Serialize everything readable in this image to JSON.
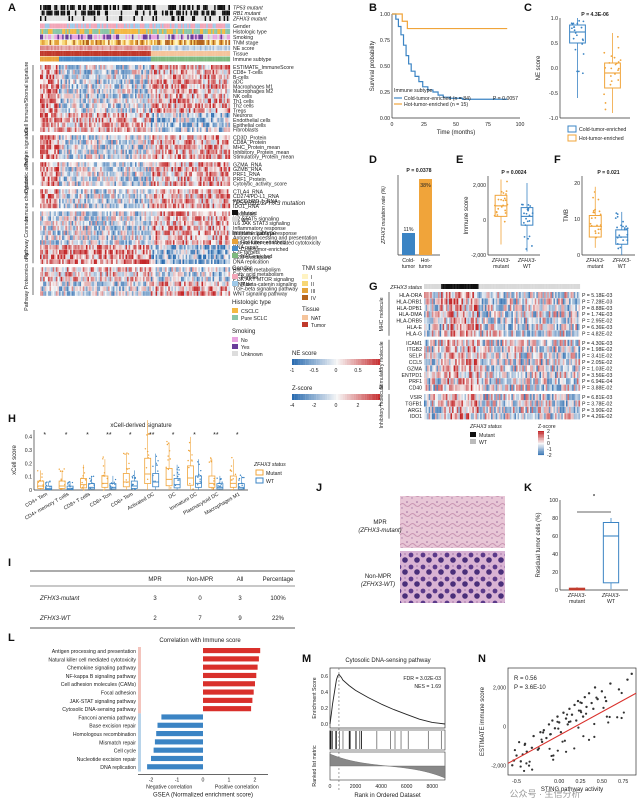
{
  "panel_labels": [
    "A",
    "B",
    "C",
    "D",
    "E",
    "F",
    "G",
    "H",
    "I",
    "J",
    "K",
    "L",
    "M",
    "N"
  ],
  "panelA": {
    "mutation_rows": [
      "TP53 mutant",
      "RB1 mutant",
      "ZFHX3 mutant"
    ],
    "annotation_rows": [
      "Gender",
      "Histologic type",
      "Smoking",
      "TNM stage",
      "NE score",
      "Tissue",
      "Immune subtype"
    ],
    "group_headers": [
      {
        "title": "xCell Immune/Stromal signature",
        "rows": [
          "ESTIMATE_ImmuneScore",
          "CD8+ T-cells",
          "B-cells",
          "aDC",
          "Macrophages M1",
          "Macrophages M2",
          "NK cells",
          "Th1 cells",
          "Th2 cells",
          "Tregs",
          "Neurons",
          "Endothelial cells",
          "Epithelial cells",
          "Fibroblasts"
        ]
      },
      {
        "title": "Protein signature",
        "rows": [
          "CD3D_Protein",
          "CD8A_Protein",
          "MHC_Protein_mean",
          "Inhibitory_Protein_mean",
          "Stimulatory_Protein_mean"
        ]
      },
      {
        "title": "Cytotoxic activity",
        "rows": [
          "GZMA_RNA",
          "GZMB_RNA",
          "PRF1_RNA",
          "PRF1_Protein",
          "Cytolytic_activity_score"
        ]
      },
      {
        "title": "Immune checkpoint",
        "rows": [
          "CTLA4_RNA",
          "CD274/PD-L1_RNA",
          "PDCD1/PD-1_RNA",
          "IDO1_RNA"
        ]
      },
      {
        "title": "Pathway Common",
        "rows": [
          "Apoptosis",
          "IL2 STAT5 signaling",
          "IL6 JAK STAT3 signaling",
          "Inflammatory response",
          "Interferon gamma response",
          "Antigen processing and presentation",
          "Natural killer cell mediated cytotoxicity",
          "DNA repair",
          "E2F targets",
          "G2M checkpoint",
          "DNA replication"
        ]
      },
      {
        "title": "Pathway Proteomics only",
        "rows": [
          "Bile acid metabolism",
          "Fatty acid metabolism",
          "PI3K AKT MTOR signaling",
          "WNT beta-catenin signaling",
          "TGF-beta signaling pathway",
          "WNT signaling pathway"
        ]
      }
    ],
    "legend": {
      "mut_title": "TP53/RB1/ZFHX3 mutation",
      "mut_items": [
        {
          "label": "Mutant",
          "color": "#111111"
        },
        {
          "label": "WT",
          "color": "#d9d9d9"
        }
      ],
      "immune_title": "Immune subtype",
      "immune_items": [
        {
          "label": "Hot-tumor-enriched",
          "color": "#e8a23a"
        },
        {
          "label": "Cold-tumor-enriched",
          "color": "#4a8cc7"
        },
        {
          "label": "NAT-enriched",
          "color": "#7fb97f"
        }
      ],
      "gender_title": "Gender",
      "gender_items": [
        {
          "label": "Female",
          "color": "#f2a6b8"
        },
        {
          "label": "Male",
          "color": "#9fc9e8"
        }
      ],
      "tnm_title": "TNM stage",
      "tnm_items": [
        {
          "label": "I",
          "color": "#fff3c2"
        },
        {
          "label": "II",
          "color": "#f7d774"
        },
        {
          "label": "III",
          "color": "#e4a33a"
        },
        {
          "label": "IV",
          "color": "#b5651d"
        }
      ],
      "histo_title": "Histologic type",
      "histo_items": [
        {
          "label": "CSCLC",
          "color": "#f4b942"
        },
        {
          "label": "Pure SCLC",
          "color": "#8ac6a8"
        }
      ],
      "tissue_title": "Tissue",
      "tissue_items": [
        {
          "label": "NAT",
          "color": "#f5c49b"
        },
        {
          "label": "Tumor",
          "color": "#c0392b"
        }
      ],
      "smoking_title": "Smoking",
      "smoking_items": [
        {
          "label": "No",
          "color": "#e9a3e0"
        },
        {
          "label": "Yes",
          "color": "#6a3d9a"
        },
        {
          "label": "Unknown",
          "color": "#dddddd"
        }
      ],
      "ne_title": "NE score",
      "ne_ticks": [
        "-1",
        "-0.5",
        "0",
        "0.5",
        "1"
      ],
      "z_title": "Z-score",
      "z_ticks": [
        "-4",
        "-2",
        "0",
        "2",
        "4"
      ]
    }
  },
  "chart_data": [
    {
      "panel": "B",
      "type": "line",
      "ylabel": "Survival probability",
      "xlabel": "Time (months)",
      "xlim": [
        0,
        100
      ],
      "ylim": [
        0,
        1
      ],
      "xticks": [
        "0",
        "25",
        "50",
        "75",
        "100"
      ],
      "yticks": [
        "0.00",
        "0.25",
        "0.50",
        "0.75",
        "1.00"
      ],
      "legend_title": "Immune subtype",
      "series": [
        {
          "name": "Cold-tumor-enriched (n = 84)",
          "color": "#3b84c4",
          "x": [
            0,
            3,
            5,
            7,
            9,
            11,
            13,
            15,
            18,
            21,
            24,
            28,
            32,
            36,
            40,
            45,
            50,
            55,
            60,
            70,
            80,
            90
          ],
          "y": [
            1,
            0.95,
            0.88,
            0.8,
            0.7,
            0.6,
            0.52,
            0.45,
            0.4,
            0.35,
            0.3,
            0.27,
            0.25,
            0.22,
            0.2,
            0.19,
            0.19,
            0.18,
            0.18,
            0.18,
            0.18,
            0.18
          ]
        },
        {
          "name": "Hot-tumor-enriched (n = 15)",
          "color": "#f0a43a",
          "x": [
            0,
            5,
            8,
            12,
            90
          ],
          "y": [
            1,
            1,
            0.93,
            0.86,
            0.86
          ]
        }
      ],
      "annotation": "P = 0.0057"
    },
    {
      "panel": "C",
      "type": "box",
      "ylabel": "NE score",
      "yticks": [
        "-1.0",
        "-0.5",
        "0.0",
        "0.5",
        "1.0"
      ],
      "ylim": [
        -1,
        1
      ],
      "annotation": "P = 4.3E-06",
      "groups": [
        {
          "name": "Cold-tumor-enriched",
          "color": "#3b84c4",
          "q1": 0.5,
          "median": 0.72,
          "q3": 0.86,
          "min": -0.6,
          "max": 1.0
        },
        {
          "name": "Hot-tumor-enriched",
          "color": "#f0a43a",
          "q1": -0.4,
          "median": -0.1,
          "q3": 0.1,
          "min": -0.9,
          "max": 0.7
        }
      ]
    },
    {
      "panel": "D",
      "type": "bar",
      "ylabel": "ZFHX3 mutation rate (%)",
      "categories": [
        "Cold-tumor",
        "Hot-tumor"
      ],
      "values": [
        11,
        38
      ],
      "value_labels": [
        "11%",
        "38%"
      ],
      "colors": [
        "#3b84c4",
        "#f0a43a"
      ],
      "ylim": [
        0,
        40
      ],
      "annotation": "P = 0.0378"
    },
    {
      "panel": "E",
      "type": "box",
      "ylabel": "Immune score",
      "yticks": [
        "-2,000",
        "0",
        "2,000"
      ],
      "ylim": [
        -2000,
        2500
      ],
      "annotation": "P = 0.0024",
      "groups": [
        {
          "name": "ZFHX3-mutant",
          "color": "#f0a43a",
          "q1": 200,
          "median": 800,
          "q3": 1400,
          "min": -1400,
          "max": 2300
        },
        {
          "name": "ZFHX3-WT",
          "color": "#3b84c4",
          "q1": -300,
          "median": 200,
          "q3": 700,
          "min": -1800,
          "max": 2100
        }
      ]
    },
    {
      "panel": "F",
      "type": "box",
      "ylabel": "TMB",
      "yticks": [
        "0",
        "10",
        "20"
      ],
      "ylim": [
        0,
        22
      ],
      "annotation": "P = 0.021",
      "groups": [
        {
          "name": "ZFHX3-mutant",
          "color": "#f0a43a",
          "q1": 5,
          "median": 8,
          "q3": 11,
          "min": 2,
          "max": 19
        },
        {
          "name": "ZFHX3-WT",
          "color": "#3b84c4",
          "q1": 3,
          "median": 5,
          "q3": 7,
          "min": 0,
          "max": 12
        }
      ]
    },
    {
      "panel": "H",
      "type": "box",
      "title": "xCell-derived signature",
      "ylabel": "xCell score",
      "yticks": [
        "0",
        "0.1",
        "0.2",
        "0.3",
        "0.4"
      ],
      "ylim": [
        0,
        0.45
      ],
      "categories": [
        "CD4+ Tem",
        "CD4+ memory T cells",
        "CD8+ T cells",
        "CD8+ Tcm",
        "CD8+ Tem",
        "Activated DC",
        "DC",
        "Immature DC",
        "Plasmacytoid DC",
        "Macrophages M1"
      ],
      "significance": [
        "*",
        "*",
        "*",
        "**",
        "*",
        "**",
        "*",
        "*",
        "**",
        "*"
      ],
      "legend_title": "ZFHX3 status",
      "series": [
        {
          "name": "Mutant",
          "color": "#f0a43a",
          "medians": [
            0.03,
            0.03,
            0.04,
            0.05,
            0.06,
            0.12,
            0.08,
            0.09,
            0.05,
            0.05
          ]
        },
        {
          "name": "WT",
          "color": "#3b84c4",
          "medians": [
            0.01,
            0.01,
            0.02,
            0.02,
            0.03,
            0.06,
            0.04,
            0.05,
            0.02,
            0.02
          ]
        }
      ]
    },
    {
      "panel": "K",
      "type": "box",
      "ylabel": "Residual tumor cells (%)",
      "yticks": [
        "0",
        "20",
        "40",
        "60",
        "80",
        "100"
      ],
      "ylim": [
        0,
        100
      ],
      "annotation": "*",
      "groups": [
        {
          "name": "ZFHX3-mutant",
          "color": "#c0392b",
          "q1": 0,
          "median": 1,
          "q3": 2,
          "min": 0,
          "max": 3
        },
        {
          "name": "ZFHX3-WT",
          "color": "#3b84c4",
          "q1": 8,
          "median": 60,
          "q3": 75,
          "min": 1,
          "max": 80
        }
      ]
    },
    {
      "panel": "L",
      "type": "bar",
      "title": "Correlation with Immune score",
      "xlabel": "GSEA (Normalized enrichment score)",
      "xlim": [
        -2.5,
        2.5
      ],
      "xticks": [
        "-2",
        "-1",
        "0",
        "1",
        "2"
      ],
      "axis_notes": [
        "Negative correlation",
        "Positive correlation"
      ],
      "categories": [
        "Antigen processing and presentation",
        "Natural killer cell mediated cytotoxicity",
        "Chemokine signaling pathway",
        "NF-kappa B signaling pathway",
        "Cell adhesion molecules (CAMs)",
        "Focal adhesion",
        "JAK-STAT signaling pathway",
        "Cytosolic DNA-sensing pathway",
        "Fanconi anemia pathway",
        "Base excision repair",
        "Homologous recombination",
        "Mismatch repair",
        "Cell cycle",
        "Nucleotide excision repair",
        "DNA replication"
      ],
      "values": [
        2.2,
        2.15,
        2.1,
        2.05,
        2.0,
        1.95,
        1.9,
        1.85,
        -1.6,
        -1.75,
        -1.8,
        -1.85,
        -1.9,
        -2.0,
        -2.15
      ],
      "colors": {
        "positive": "#d9302b",
        "negative": "#3b84c4"
      }
    },
    {
      "panel": "M",
      "type": "line",
      "title": "Cytosolic DNA-sensing pathway",
      "ylabel": "Enrichment Score",
      "ylabel2": "Ranked list metric",
      "xlabel": "Rank in Ordered Dataset",
      "xticks": [
        "0",
        "2000",
        "4000",
        "6000",
        "8000"
      ],
      "xlim": [
        0,
        9000
      ],
      "yticks": [
        "0.0",
        "0.2",
        "0.4",
        "0.6"
      ],
      "ylim": [
        -0.05,
        0.7
      ],
      "annotation_lines": [
        "FDR = 3.02E-03",
        "NES = 1.69"
      ],
      "x": [
        0,
        100,
        200,
        300,
        400,
        500,
        600,
        700,
        800,
        900,
        1000,
        1500,
        2000,
        3000,
        4000,
        5000,
        6000,
        7000,
        8000,
        8500,
        9000
      ],
      "y": [
        0,
        0.12,
        0.25,
        0.35,
        0.45,
        0.55,
        0.6,
        0.62,
        0.6,
        0.58,
        0.55,
        0.48,
        0.42,
        0.33,
        0.25,
        0.18,
        0.12,
        0.06,
        0.02,
        0.01,
        0
      ]
    },
    {
      "panel": "N",
      "type": "scatter",
      "xlabel": "STING pathway activity",
      "ylabel": "ESTIMATE immune score",
      "xticks": [
        "-0.5",
        "0.00",
        "0.25",
        "0.50",
        "0.75"
      ],
      "xlim": [
        -0.6,
        0.9
      ],
      "yticks": [
        "-2,000",
        "0",
        "2,000"
      ],
      "ylim": [
        -2500,
        3000
      ],
      "annotation_lines": [
        "R = 0.56",
        "P = 3.6E-10"
      ],
      "regression": {
        "x": [
          -0.6,
          0.9
        ],
        "y": [
          -1900,
          1700
        ],
        "color": "#d9302b"
      },
      "points": {
        "x": [
          -0.55,
          -0.5,
          -0.45,
          -0.4,
          -0.38,
          -0.32,
          -0.3,
          -0.25,
          -0.22,
          -0.2,
          -0.18,
          -0.15,
          -0.12,
          -0.1,
          -0.08,
          -0.05,
          -0.02,
          0.0,
          0.02,
          0.05,
          0.08,
          0.1,
          0.12,
          0.15,
          0.18,
          0.2,
          0.22,
          0.25,
          0.28,
          0.3,
          0.32,
          0.35,
          0.38,
          0.4,
          0.42,
          0.45,
          0.5,
          0.55,
          0.6,
          0.7,
          0.8,
          0.85
        ],
        "y": [
          -2000,
          -1500,
          -1800,
          -900,
          -1300,
          -1100,
          -500,
          -1200,
          -300,
          -800,
          -200,
          -600,
          100,
          -400,
          300,
          -100,
          500,
          200,
          -300,
          700,
          400,
          100,
          900,
          600,
          1100,
          300,
          1300,
          800,
          500,
          1500,
          1000,
          1700,
          1200,
          900,
          2000,
          1400,
          1800,
          1300,
          2200,
          1900,
          2400,
          2700
        ]
      }
    }
  ],
  "panelG": {
    "status_title": "ZFHX3 status",
    "groups": [
      {
        "title": "MHC molecule",
        "rows": [
          "HLA-DRA",
          "HLA-DRB1",
          "HLA-DPB1",
          "HLA-DMA",
          "HLA-DRB5",
          "HLA-E",
          "HLA-G"
        ],
        "pvals": [
          "P = 5.18E-03",
          "P = 7.28E-03",
          "P = 8.88E-03",
          "P = 1.74E-03",
          "P = 2.95E-02",
          "P = 6.36E-03",
          "P = 4.82E-02"
        ]
      },
      {
        "title": "Stimulatory molecule",
        "rows": [
          "ICAM1",
          "ITGB2",
          "SELP",
          "CCL5",
          "GZMA",
          "ENTPD1",
          "PRF1",
          "CD40"
        ],
        "pvals": [
          "P = 4.30E-03",
          "P = 1.98E-02",
          "P = 3.41E-02",
          "P = 2.05E-02",
          "P = 1.03E-02",
          "P = 3.56E-03",
          "P = 6.94E-04",
          "P = 3.88E-02"
        ]
      },
      {
        "title": "Inhibitory molecule",
        "rows": [
          "VSIR",
          "TGFB1",
          "ARG1",
          "IDO1"
        ],
        "pvals": [
          "P = 6.81E-03",
          "P = 3.78E-02",
          "P = 3.90E-02",
          "P = 4.26E-02"
        ]
      }
    ],
    "legend_status_title": "ZFHX3 status",
    "legend_items": [
      {
        "label": "Mutant",
        "color": "#111111"
      },
      {
        "label": "WT",
        "color": "#bbbbbb"
      }
    ],
    "z_title": "Z-score",
    "z_ticks": [
      "2",
      "1",
      "0",
      "-1",
      "-2"
    ]
  },
  "panelI": {
    "headers": [
      "",
      "MPR",
      "Non-MPR",
      "All",
      "Percentage"
    ],
    "rows": [
      {
        "label": "ZFHX3-mutant",
        "mpr": "3",
        "nonmpr": "0",
        "all": "3",
        "pct": "100%"
      },
      {
        "label": "ZFHX3-WT",
        "mpr": "2",
        "nonmpr": "7",
        "all": "9",
        "pct": "22%"
      }
    ]
  },
  "panelJ": {
    "top_label_1": "MPR",
    "top_label_2": "(ZFHX3-mutant)",
    "bottom_label_1": "Non-MPR",
    "bottom_label_2": "(ZFHX3-WT)"
  },
  "watermark": "公众号 · 生信分析",
  "colors": {
    "cold": "#3b84c4",
    "hot": "#f0a43a",
    "red": "#d9302b"
  }
}
